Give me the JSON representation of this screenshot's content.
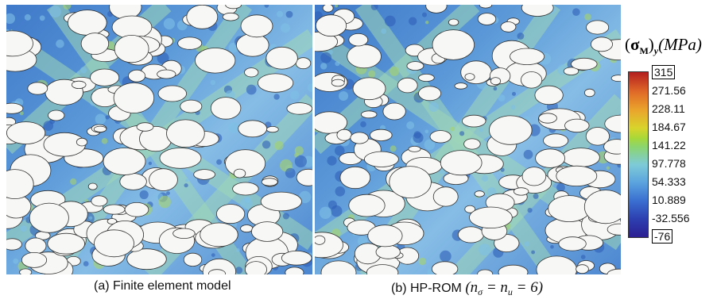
{
  "captions": {
    "a": "(a) Finite element model",
    "b_prefix": "(b) HP-ROM",
    "b_math_open": "(",
    "b_n": "n",
    "b_sigma": "σ",
    "b_eq1": " = ",
    "b_n2": "n",
    "b_u": "u",
    "b_eq2": " = 6)"
  },
  "legend": {
    "title_open": "(",
    "title_sigma": "σ",
    "title_M": "M",
    "title_close": ")",
    "title_y": "y",
    "title_unit": "(MPa)",
    "ticks": [
      "315",
      "271.56",
      "228.11",
      "184.67",
      "141.22",
      "97.778",
      "54.333",
      "10.889",
      "-32.556",
      "-76"
    ]
  }
}
